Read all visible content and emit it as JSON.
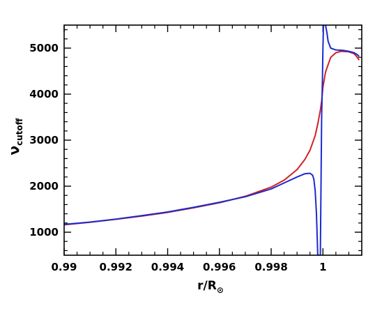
{
  "chart_data": {
    "type": "line",
    "xlabel": "r/R",
    "xlabel_subscript": "⊙",
    "ylabel": "ν",
    "ylabel_subscript": "cutoff",
    "xlim": [
      0.99,
      1.0015
    ],
    "ylim": [
      500,
      5500
    ],
    "x_ticks": [
      0.99,
      0.992,
      0.994,
      0.996,
      0.998,
      1
    ],
    "x_tick_labels": [
      "0.99",
      "0.992",
      "0.994",
      "0.996",
      "0.998",
      "1"
    ],
    "y_ticks": [
      1000,
      2000,
      3000,
      4000,
      5000
    ],
    "y_tick_labels": [
      "1000",
      "2000",
      "3000",
      "4000",
      "5000"
    ],
    "grid": false,
    "series": [
      {
        "color": "#d42020",
        "x": [
          0.99,
          0.991,
          0.992,
          0.993,
          0.994,
          0.995,
          0.996,
          0.997,
          0.998,
          0.9985,
          0.999,
          0.9993,
          0.9995,
          0.9997,
          0.9998,
          0.99985,
          0.9999,
          0.99995,
          1.0,
          1.0001,
          1.0003,
          1.0005,
          1.0007,
          1.001,
          1.0012,
          1.0013,
          1.0014
        ],
        "y": [
          1160,
          1215,
          1280,
          1350,
          1430,
          1530,
          1640,
          1780,
          1980,
          2130,
          2360,
          2580,
          2780,
          3100,
          3350,
          3500,
          3650,
          3850,
          4150,
          4480,
          4800,
          4900,
          4930,
          4920,
          4880,
          4820,
          4740
        ]
      },
      {
        "color": "#1a2ad0",
        "x": [
          0.99,
          0.991,
          0.992,
          0.993,
          0.994,
          0.995,
          0.996,
          0.997,
          0.998,
          0.9985,
          0.999,
          0.9993,
          0.9995,
          0.9996,
          0.99965,
          0.9997,
          0.99975,
          0.9998,
          0.99985,
          0.9999,
          0.99995,
          0.99998,
          1.0,
          1.00002,
          1.00005,
          1.0001,
          1.00015,
          1.0002,
          1.0003,
          1.0005,
          1.0008,
          1.001,
          1.0012,
          1.0013,
          1.0014
        ],
        "y": [
          1170,
          1220,
          1285,
          1360,
          1440,
          1540,
          1650,
          1770,
          1940,
          2070,
          2200,
          2270,
          2280,
          2240,
          2150,
          1900,
          1400,
          500,
          500,
          500,
          3500,
          4300,
          5000,
          5500,
          5500,
          5500,
          5350,
          5150,
          5000,
          4960,
          4950,
          4930,
          4900,
          4870,
          4820
        ]
      }
    ]
  }
}
